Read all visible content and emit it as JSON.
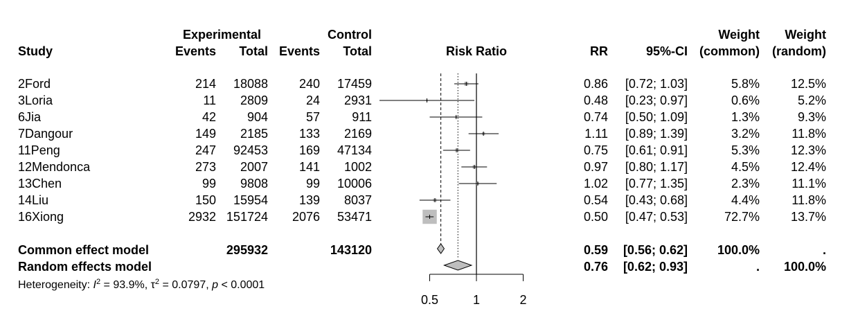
{
  "chart_data": {
    "type": "forest",
    "headers": {
      "study": "Study",
      "experimental": "Experimental",
      "control": "Control",
      "events": "Events",
      "total": "Total",
      "risk_ratio": "Risk Ratio",
      "rr": "RR",
      "ci": "95%-CI",
      "weight": "Weight",
      "weight_common": "(common)",
      "weight_random": "(random)"
    },
    "studies": [
      {
        "name": "2Ford",
        "e_events": "214",
        "e_total": "18088",
        "c_events": "240",
        "c_total": "17459",
        "rr": 0.86,
        "lo": 0.72,
        "hi": 1.03,
        "rr_text": "0.86",
        "ci_text": "[0.72; 1.03]",
        "w_common": "5.8%",
        "w_random": "12.5%",
        "w": 5.8
      },
      {
        "name": "3Loria",
        "e_events": "11",
        "e_total": "2809",
        "c_events": "24",
        "c_total": "2931",
        "rr": 0.48,
        "lo": 0.23,
        "hi": 0.97,
        "rr_text": "0.48",
        "ci_text": "[0.23; 0.97]",
        "w_common": "0.6%",
        "w_random": "5.2%",
        "w": 0.6
      },
      {
        "name": "6Jia",
        "e_events": "42",
        "e_total": "904",
        "c_events": "57",
        "c_total": "911",
        "rr": 0.74,
        "lo": 0.5,
        "hi": 1.09,
        "rr_text": "0.74",
        "ci_text": "[0.50; 1.09]",
        "w_common": "1.3%",
        "w_random": "9.3%",
        "w": 1.3
      },
      {
        "name": "7Dangour",
        "e_events": "149",
        "e_total": "2185",
        "c_events": "133",
        "c_total": "2169",
        "rr": 1.11,
        "lo": 0.89,
        "hi": 1.39,
        "rr_text": "1.11",
        "ci_text": "[0.89; 1.39]",
        "w_common": "3.2%",
        "w_random": "11.8%",
        "w": 3.2
      },
      {
        "name": "11Peng",
        "e_events": "247",
        "e_total": "92453",
        "c_events": "169",
        "c_total": "47134",
        "rr": 0.75,
        "lo": 0.61,
        "hi": 0.91,
        "rr_text": "0.75",
        "ci_text": "[0.61; 0.91]",
        "w_common": "5.3%",
        "w_random": "12.3%",
        "w": 5.3
      },
      {
        "name": "12Mendonca",
        "e_events": "273",
        "e_total": "2007",
        "c_events": "141",
        "c_total": "1002",
        "rr": 0.97,
        "lo": 0.8,
        "hi": 1.17,
        "rr_text": "0.97",
        "ci_text": "[0.80; 1.17]",
        "w_common": "4.5%",
        "w_random": "12.4%",
        "w": 4.5
      },
      {
        "name": "13Chen",
        "e_events": "99",
        "e_total": "9808",
        "c_events": "99",
        "c_total": "10006",
        "rr": 1.02,
        "lo": 0.77,
        "hi": 1.35,
        "rr_text": "1.02",
        "ci_text": "[0.77; 1.35]",
        "w_common": "2.3%",
        "w_random": "11.1%",
        "w": 2.3
      },
      {
        "name": "14Liu",
        "e_events": "150",
        "e_total": "15954",
        "c_events": "139",
        "c_total": "8037",
        "rr": 0.54,
        "lo": 0.43,
        "hi": 0.68,
        "rr_text": "0.54",
        "ci_text": "[0.43; 0.68]",
        "w_common": "4.4%",
        "w_random": "11.8%",
        "w": 4.4
      },
      {
        "name": "16Xiong",
        "e_events": "2932",
        "e_total": "151724",
        "c_events": "2076",
        "c_total": "53471",
        "rr": 0.5,
        "lo": 0.47,
        "hi": 0.53,
        "rr_text": "0.50",
        "ci_text": "[0.47; 0.53]",
        "w_common": "72.7%",
        "w_random": "13.7%",
        "w": 72.7
      }
    ],
    "common": {
      "label": "Common effect model",
      "e_total": "295932",
      "c_total": "143120",
      "rr": 0.59,
      "lo": 0.56,
      "hi": 0.62,
      "rr_text": "0.59",
      "ci_text": "[0.56; 0.62]",
      "w_common": "100.0%",
      "w_random": "."
    },
    "random": {
      "label": "Random effects model",
      "rr": 0.76,
      "lo": 0.62,
      "hi": 0.93,
      "rr_text": "0.76",
      "ci_text": "[0.62; 0.93]",
      "w_common": ".",
      "w_random": "100.0%"
    },
    "heterogeneity": {
      "prefix": "Heterogeneity: ",
      "i2_symbol": "I",
      "i2_value": " = 93.9%, ",
      "tau2_symbol": "τ",
      "tau2_value": " = 0.0797, ",
      "p_symbol": "p",
      "p_value": " < 0.0001"
    },
    "axis": {
      "scale": "log",
      "ticks": [
        0.5,
        1,
        2
      ],
      "tick_labels": [
        "0.5",
        "1",
        "2"
      ],
      "null_line": 1
    }
  },
  "colors": {
    "box": "#bebebe",
    "diamond": "#bebebe",
    "line": "#000000"
  }
}
